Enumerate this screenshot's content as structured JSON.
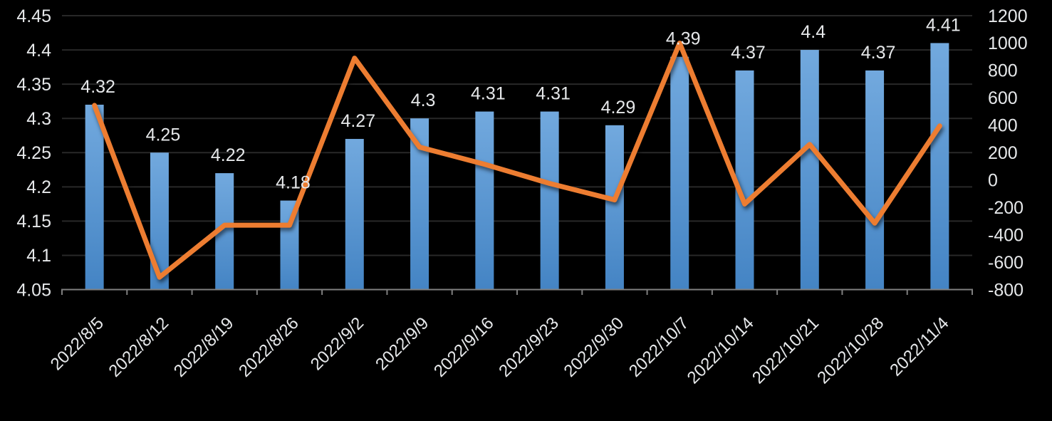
{
  "colors": {
    "background": "#000000",
    "bar_gradient_top": "#72a9de",
    "bar_gradient_bottom": "#4484c4",
    "line": "#ed7d31",
    "gridline": "#282828",
    "axis_line": "#7f7f7f",
    "label_text": "#e6e8ea"
  },
  "chart_data": {
    "type": "combo",
    "title": "",
    "legend": false,
    "grid": true,
    "categories": [
      "2022/8/5",
      "2022/8/12",
      "2022/8/19",
      "2022/8/26",
      "2022/9/2",
      "2022/9/9",
      "2022/9/16",
      "2022/9/23",
      "2022/9/30",
      "2022/10/7",
      "2022/10/14",
      "2022/10/21",
      "2022/10/28",
      "2022/11/4"
    ],
    "series": [
      {
        "name": "bar-series",
        "type": "bar",
        "axis": "left",
        "values": [
          4.32,
          4.25,
          4.22,
          4.18,
          4.27,
          4.3,
          4.31,
          4.31,
          4.29,
          4.39,
          4.37,
          4.4,
          4.37,
          4.41
        ],
        "data_labels": [
          "4.32",
          "4.25",
          "4.22",
          "4.18",
          "4.27",
          "4.3",
          "4.31",
          "4.31",
          "4.29",
          "4.39",
          "4.37",
          "4.4",
          "4.37",
          "4.41"
        ]
      },
      {
        "name": "line-series",
        "type": "line",
        "axis": "right",
        "values": [
          545,
          -710,
          -330,
          -330,
          890,
          240,
          115,
          -25,
          -145,
          1000,
          -175,
          260,
          -315,
          395
        ]
      }
    ],
    "left_axis": {
      "min": 4.05,
      "max": 4.45,
      "tick_labels": [
        "4.45",
        "4.4",
        "4.35",
        "4.3",
        "4.25",
        "4.2",
        "4.15",
        "4.1",
        "4.05"
      ],
      "tick_values": [
        4.45,
        4.4,
        4.35,
        4.3,
        4.25,
        4.2,
        4.15,
        4.1,
        4.05
      ]
    },
    "right_axis": {
      "min": -800,
      "max": 1200,
      "tick_labels": [
        "1200",
        "1000",
        "800",
        "600",
        "400",
        "200",
        "0",
        "-200",
        "-400",
        "-600",
        "-800"
      ],
      "tick_values": [
        1200,
        1000,
        800,
        600,
        400,
        200,
        0,
        -200,
        -400,
        -600,
        -800
      ]
    }
  }
}
